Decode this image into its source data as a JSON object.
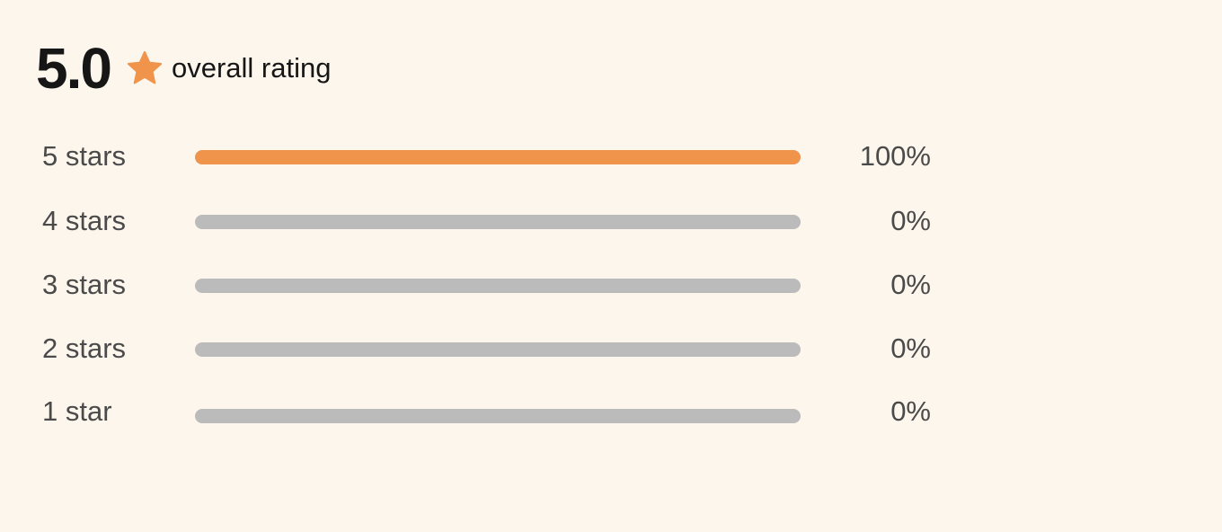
{
  "summary": {
    "score": "5.0",
    "label": "overall rating",
    "icon": "star-icon",
    "star_color": "#f0944c"
  },
  "distribution": [
    {
      "label": "5 stars",
      "percent_text": "100%",
      "fraction": 1.0
    },
    {
      "label": "4 stars",
      "percent_text": "0%",
      "fraction": 0.0
    },
    {
      "label": "3 stars",
      "percent_text": "0%",
      "fraction": 0.0
    },
    {
      "label": "2 stars",
      "percent_text": "0%",
      "fraction": 0.0
    },
    {
      "label": "1 star",
      "percent_text": "0%",
      "fraction": 0.0
    }
  ],
  "colors": {
    "background": "#fdf6ec",
    "bar_fill": "#f0944c",
    "bar_track": "#bbbbbb"
  }
}
